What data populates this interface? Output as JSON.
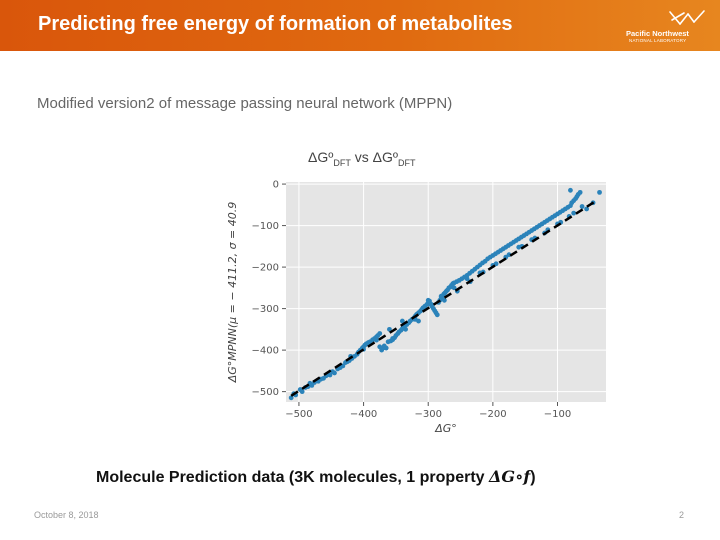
{
  "slide": {
    "title": "Predicting free energy of formation of metabolites",
    "subtitle": "Modified version2 of message passing neural network (MPPN)",
    "caption_text": "Molecule Prediction data (3K molecules, 1 property ",
    "caption_math": "ΔG∘f",
    "caption_end": ")",
    "footer_date": "October 8, 2018",
    "page_number": "2"
  },
  "logo": {
    "name": "Pacific Northwest",
    "sub": "NATIONAL LABORATORY"
  },
  "colors": {
    "header": "#e06a10",
    "plot_bg": "#e5e5e5",
    "points": "#2b83ba"
  },
  "chart_data": {
    "type": "scatter",
    "title_main": "ΔGº",
    "title_sub1": "DFT",
    "title_vs": " vs ",
    "title_main2": "ΔGº",
    "title_sub2": "DFT",
    "xlabel": "ΔG°",
    "ylabel": "ΔG°MPNN(μ = − 411.2, σ = 40.9",
    "xlim": [
      -520,
      -25
    ],
    "ylim": [
      -525,
      5
    ],
    "x_ticks": [
      -500,
      -400,
      -300,
      -200,
      -100
    ],
    "x_tick_labels": [
      "−500",
      "−400",
      "−300",
      "−200",
      "−100"
    ],
    "y_ticks": [
      0,
      -100,
      -200,
      -300,
      -400,
      -500
    ],
    "y_tick_labels": [
      "0",
      "−100",
      "−200",
      "−300",
      "−400",
      "−500"
    ],
    "grid": true,
    "fit_line": {
      "x": [
        -512,
        -40
      ],
      "y": [
        -510,
        -40
      ],
      "style": "dashed",
      "color": "#000000"
    },
    "points": [
      [
        -512,
        -515
      ],
      [
        -508,
        -505
      ],
      [
        -505,
        -508
      ],
      [
        -498,
        -495
      ],
      [
        -495,
        -500
      ],
      [
        -490,
        -490
      ],
      [
        -486,
        -488
      ],
      [
        -483,
        -480
      ],
      [
        -480,
        -485
      ],
      [
        -476,
        -478
      ],
      [
        -470,
        -475
      ],
      [
        -466,
        -470
      ],
      [
        -462,
        -468
      ],
      [
        -458,
        -462
      ],
      [
        -455,
        -458
      ],
      [
        -452,
        -460
      ],
      [
        -448,
        -452
      ],
      [
        -445,
        -455
      ],
      [
        -440,
        -445
      ],
      [
        -436,
        -442
      ],
      [
        -432,
        -438
      ],
      [
        -428,
        -430
      ],
      [
        -425,
        -428
      ],
      [
        -422,
        -425
      ],
      [
        -418,
        -420
      ],
      [
        -414,
        -415
      ],
      [
        -410,
        -410
      ],
      [
        -408,
        -405
      ],
      [
        -405,
        -400
      ],
      [
        -402,
        -395
      ],
      [
        -400,
        -392
      ],
      [
        -398,
        -388
      ],
      [
        -396,
        -385
      ],
      [
        -393,
        -382
      ],
      [
        -390,
        -380
      ],
      [
        -386,
        -375
      ],
      [
        -383,
        -372
      ],
      [
        -380,
        -368
      ],
      [
        -378,
        -365
      ],
      [
        -375,
        -360
      ],
      [
        -372,
        -400
      ],
      [
        -370,
        -395
      ],
      [
        -368,
        -390
      ],
      [
        -365,
        -395
      ],
      [
        -362,
        -380
      ],
      [
        -358,
        -378
      ],
      [
        -355,
        -375
      ],
      [
        -352,
        -370
      ],
      [
        -350,
        -365
      ],
      [
        -347,
        -360
      ],
      [
        -345,
        -356
      ],
      [
        -342,
        -352
      ],
      [
        -340,
        -348
      ],
      [
        -338,
        -344
      ],
      [
        -335,
        -340
      ],
      [
        -333,
        -338
      ],
      [
        -330,
        -334
      ],
      [
        -328,
        -330
      ],
      [
        -325,
        -326
      ],
      [
        -322,
        -322
      ],
      [
        -320,
        -318
      ],
      [
        -318,
        -314
      ],
      [
        -315,
        -310
      ],
      [
        -312,
        -306
      ],
      [
        -310,
        -302
      ],
      [
        -308,
        -298
      ],
      [
        -305,
        -294
      ],
      [
        -302,
        -290
      ],
      [
        -300,
        -286
      ],
      [
        -298,
        -282
      ],
      [
        -296,
        -290
      ],
      [
        -294,
        -295
      ],
      [
        -292,
        -300
      ],
      [
        -290,
        -305
      ],
      [
        -288,
        -310
      ],
      [
        -286,
        -315
      ],
      [
        -284,
        -285
      ],
      [
        -282,
        -280
      ],
      [
        -280,
        -275
      ],
      [
        -278,
        -270
      ],
      [
        -276,
        -265
      ],
      [
        -274,
        -262
      ],
      [
        -272,
        -258
      ],
      [
        -270,
        -255
      ],
      [
        -268,
        -250
      ],
      [
        -266,
        -248
      ],
      [
        -264,
        -244
      ],
      [
        -262,
        -240
      ],
      [
        -260,
        -238
      ],
      [
        -256,
        -235
      ],
      [
        -252,
        -232
      ],
      [
        -248,
        -228
      ],
      [
        -244,
        -224
      ],
      [
        -240,
        -220
      ],
      [
        -236,
        -215
      ],
      [
        -232,
        -210
      ],
      [
        -228,
        -205
      ],
      [
        -224,
        -200
      ],
      [
        -220,
        -195
      ],
      [
        -216,
        -190
      ],
      [
        -212,
        -186
      ],
      [
        -208,
        -180
      ],
      [
        -204,
        -176
      ],
      [
        -200,
        -172
      ],
      [
        -196,
        -168
      ],
      [
        -192,
        -164
      ],
      [
        -188,
        -160
      ],
      [
        -184,
        -156
      ],
      [
        -180,
        -152
      ],
      [
        -176,
        -148
      ],
      [
        -172,
        -144
      ],
      [
        -168,
        -140
      ],
      [
        -164,
        -136
      ],
      [
        -160,
        -132
      ],
      [
        -156,
        -128
      ],
      [
        -152,
        -124
      ],
      [
        -148,
        -120
      ],
      [
        -144,
        -116
      ],
      [
        -140,
        -112
      ],
      [
        -136,
        -108
      ],
      [
        -132,
        -104
      ],
      [
        -128,
        -100
      ],
      [
        -124,
        -96
      ],
      [
        -120,
        -92
      ],
      [
        -116,
        -88
      ],
      [
        -112,
        -84
      ],
      [
        -108,
        -80
      ],
      [
        -104,
        -76
      ],
      [
        -100,
        -72
      ],
      [
        -96,
        -68
      ],
      [
        -92,
        -64
      ],
      [
        -88,
        -60
      ],
      [
        -84,
        -56
      ],
      [
        -80,
        -52
      ],
      [
        -78,
        -45
      ],
      [
        -75,
        -40
      ],
      [
        -72,
        -35
      ],
      [
        -70,
        -30
      ],
      [
        -68,
        -25
      ],
      [
        -65,
        -20
      ],
      [
        -440,
        -445
      ],
      [
        -420,
        -415
      ],
      [
        -400,
        -398
      ],
      [
        -380,
        -376
      ],
      [
        -360,
        -350
      ],
      [
        -340,
        -330
      ],
      [
        -320,
        -326
      ],
      [
        -300,
        -280
      ],
      [
        -280,
        -270
      ],
      [
        -260,
        -250
      ],
      [
        -240,
        -228
      ],
      [
        -220,
        -214
      ],
      [
        -200,
        -196
      ],
      [
        -180,
        -176
      ],
      [
        -160,
        -152
      ],
      [
        -140,
        -134
      ],
      [
        -120,
        -118
      ],
      [
        -100,
        -96
      ],
      [
        -82,
        -78
      ],
      [
        -62,
        -54
      ],
      [
        -375,
        -392
      ],
      [
        -355,
        -372
      ],
      [
        -335,
        -350
      ],
      [
        -315,
        -330
      ],
      [
        -295,
        -290
      ],
      [
        -275,
        -280
      ],
      [
        -255,
        -258
      ],
      [
        -235,
        -235
      ],
      [
        -215,
        -212
      ],
      [
        -195,
        -192
      ],
      [
        -175,
        -170
      ],
      [
        -155,
        -150
      ],
      [
        -135,
        -130
      ],
      [
        -115,
        -110
      ],
      [
        -95,
        -92
      ],
      [
        -75,
        -70
      ],
      [
        -55,
        -60
      ],
      [
        -45,
        -45
      ],
      [
        -35,
        -20
      ],
      [
        -80,
        -15
      ]
    ]
  }
}
